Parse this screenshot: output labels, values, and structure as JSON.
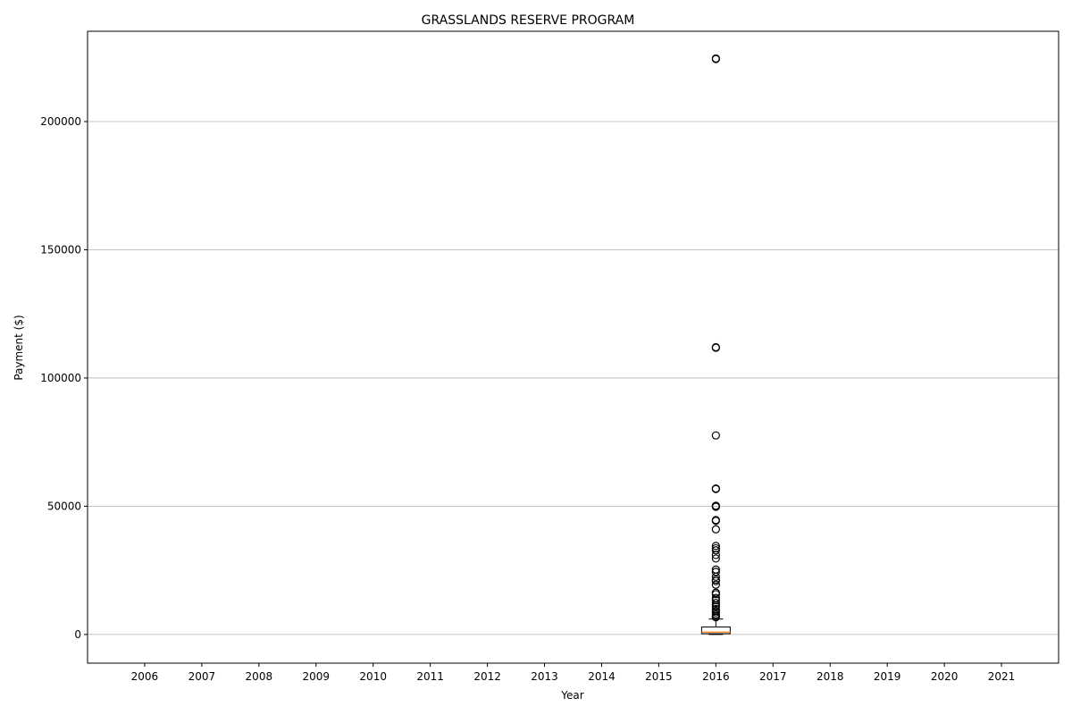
{
  "chart_data": {
    "type": "box",
    "title": "GRASSLANDS RESERVE PROGRAM",
    "xlabel": "Year",
    "ylabel": "Payment ($)",
    "categories": [
      "2006",
      "2007",
      "2008",
      "2009",
      "2010",
      "2011",
      "2012",
      "2013",
      "2014",
      "2015",
      "2016",
      "2017",
      "2018",
      "2019",
      "2020",
      "2021"
    ],
    "ylim": [
      -11200,
      235200
    ],
    "yticks": [
      0,
      50000,
      100000,
      150000,
      200000
    ],
    "grid": "y",
    "legend": "none",
    "boxes": [
      {
        "category": "2016",
        "whisker_low": 0,
        "q1": 300,
        "median": 900,
        "q3": 2900,
        "whisker_high": 6000,
        "outliers": [
          224600,
          224400,
          112000,
          111800,
          77600,
          56900,
          56700,
          50200,
          50000,
          49800,
          44600,
          44300,
          41000,
          34500,
          33600,
          32800,
          31000,
          29600,
          25300,
          24400,
          22500,
          21400,
          20800,
          19400,
          16300,
          15700,
          14200,
          13300,
          12300,
          11400,
          10800,
          9900,
          9200,
          8600,
          7800,
          7200,
          6700
        ]
      }
    ],
    "colors": {
      "box_edge": "#000000",
      "median": "#ff7f0e",
      "grid": "#b0b0b0",
      "outlier_edge": "#000000"
    }
  }
}
